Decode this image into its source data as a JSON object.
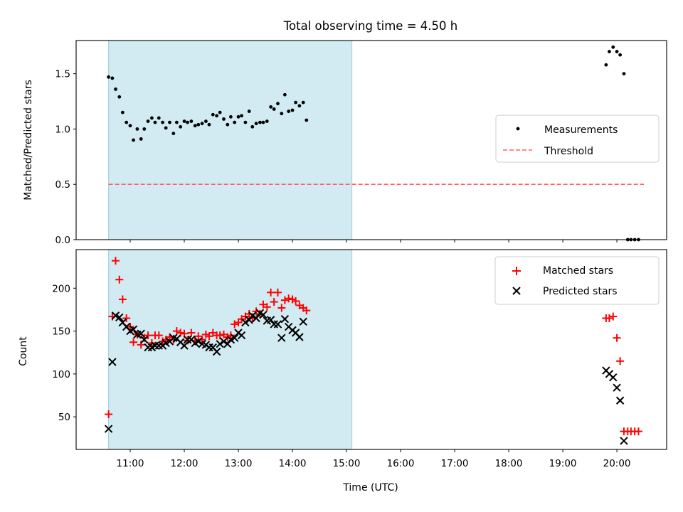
{
  "figure_title": "Total observing time = 4.50 h",
  "xlabel": "Time (UTC)",
  "xticks": [
    {
      "hour": 11,
      "label": "11:00"
    },
    {
      "hour": 12,
      "label": "12:00"
    },
    {
      "hour": 13,
      "label": "13:00"
    },
    {
      "hour": 14,
      "label": "14:00"
    },
    {
      "hour": 15,
      "label": "15:00"
    },
    {
      "hour": 16,
      "label": "16:00"
    },
    {
      "hour": 17,
      "label": "17:00"
    },
    {
      "hour": 18,
      "label": "18:00"
    },
    {
      "hour": 19,
      "label": "19:00"
    },
    {
      "hour": 20,
      "label": "20:00"
    }
  ],
  "colors": {
    "shade": "#add8e6",
    "threshold": "#ff6060",
    "matched": "#ff0000",
    "predicted": "#000000",
    "measurement": "#000000"
  },
  "chart_data": [
    {
      "type": "scatter",
      "title": "Total observing time = 4.50 h",
      "xlabel": "",
      "ylabel": "Matched/Predicted stars",
      "xlim": [
        10.0,
        20.92
      ],
      "ylim": [
        0.0,
        1.8
      ],
      "yticks": [
        "0.0",
        "0.5",
        "1.0",
        "1.5"
      ],
      "shaded_span": [
        10.6,
        15.1
      ],
      "legend": {
        "position": "center-right",
        "entries": [
          "Measurements",
          "Threshold"
        ]
      },
      "series": [
        {
          "name": "Measurements",
          "marker": "dot",
          "points": [
            [
              10.6,
              1.47
            ],
            [
              10.67,
              1.46
            ],
            [
              10.73,
              1.36
            ],
            [
              10.8,
              1.29
            ],
            [
              10.86,
              1.15
            ],
            [
              10.93,
              1.06
            ],
            [
              11.0,
              1.03
            ],
            [
              11.06,
              0.9
            ],
            [
              11.13,
              1.0
            ],
            [
              11.2,
              0.91
            ],
            [
              11.26,
              1.0
            ],
            [
              11.33,
              1.07
            ],
            [
              11.4,
              1.1
            ],
            [
              11.46,
              1.06
            ],
            [
              11.53,
              1.1
            ],
            [
              11.6,
              1.06
            ],
            [
              11.66,
              1.01
            ],
            [
              11.73,
              1.06
            ],
            [
              11.8,
              0.96
            ],
            [
              11.86,
              1.06
            ],
            [
              11.93,
              1.02
            ],
            [
              12.0,
              1.07
            ],
            [
              12.06,
              1.06
            ],
            [
              12.13,
              1.07
            ],
            [
              12.2,
              1.03
            ],
            [
              12.26,
              1.04
            ],
            [
              12.33,
              1.05
            ],
            [
              12.4,
              1.07
            ],
            [
              12.46,
              1.04
            ],
            [
              12.53,
              1.13
            ],
            [
              12.6,
              1.12
            ],
            [
              12.66,
              1.15
            ],
            [
              12.73,
              1.09
            ],
            [
              12.8,
              1.04
            ],
            [
              12.86,
              1.11
            ],
            [
              12.93,
              1.06
            ],
            [
              13.0,
              1.11
            ],
            [
              13.06,
              1.12
            ],
            [
              13.13,
              1.06
            ],
            [
              13.2,
              1.16
            ],
            [
              13.26,
              1.02
            ],
            [
              13.33,
              1.05
            ],
            [
              13.4,
              1.06
            ],
            [
              13.46,
              1.06
            ],
            [
              13.53,
              1.07
            ],
            [
              13.6,
              1.2
            ],
            [
              13.66,
              1.18
            ],
            [
              13.73,
              1.23
            ],
            [
              13.8,
              1.14
            ],
            [
              13.86,
              1.31
            ],
            [
              13.93,
              1.16
            ],
            [
              14.0,
              1.17
            ],
            [
              14.06,
              1.24
            ],
            [
              14.13,
              1.21
            ],
            [
              14.2,
              1.24
            ],
            [
              14.26,
              1.08
            ],
            [
              19.8,
              1.58
            ],
            [
              19.86,
              1.7
            ],
            [
              19.93,
              1.74
            ],
            [
              20.0,
              1.7
            ],
            [
              20.06,
              1.67
            ],
            [
              20.13,
              1.5
            ],
            [
              20.2,
              0.0
            ],
            [
              20.26,
              0.0
            ],
            [
              20.33,
              0.0
            ],
            [
              20.4,
              0.0
            ]
          ]
        },
        {
          "name": "Threshold",
          "marker": "dashed-line",
          "points": [
            [
              10.6,
              0.5
            ],
            [
              20.5,
              0.5
            ]
          ]
        }
      ]
    },
    {
      "type": "scatter",
      "title": "",
      "xlabel": "Time (UTC)",
      "ylabel": "Count",
      "xlim": [
        10.0,
        20.92
      ],
      "ylim": [
        12,
        245
      ],
      "yticks": [
        "50",
        "100",
        "150",
        "200"
      ],
      "shaded_span": [
        10.6,
        15.1
      ],
      "legend": {
        "position": "top-right",
        "entries": [
          "Matched stars",
          "Predicted stars"
        ]
      },
      "series": [
        {
          "name": "Matched stars",
          "marker": "plus",
          "points": [
            [
              10.6,
              53
            ],
            [
              10.67,
              167
            ],
            [
              10.73,
              232
            ],
            [
              10.8,
              210
            ],
            [
              10.86,
              187
            ],
            [
              10.93,
              165
            ],
            [
              11.0,
              155
            ],
            [
              11.06,
              137
            ],
            [
              11.13,
              146
            ],
            [
              11.2,
              134
            ],
            [
              11.26,
              142
            ],
            [
              11.33,
              145
            ],
            [
              11.4,
              136
            ],
            [
              11.46,
              145
            ],
            [
              11.53,
              145
            ],
            [
              11.6,
              138
            ],
            [
              11.66,
              140
            ],
            [
              11.73,
              143
            ],
            [
              11.8,
              140
            ],
            [
              11.86,
              150
            ],
            [
              11.93,
              148
            ],
            [
              12.0,
              147
            ],
            [
              12.06,
              139
            ],
            [
              12.13,
              148
            ],
            [
              12.2,
              139
            ],
            [
              12.26,
              144
            ],
            [
              12.33,
              140
            ],
            [
              12.4,
              146
            ],
            [
              12.46,
              144
            ],
            [
              12.53,
              148
            ],
            [
              12.6,
              145
            ],
            [
              12.66,
              145
            ],
            [
              12.73,
              146
            ],
            [
              12.8,
              143
            ],
            [
              12.86,
              145
            ],
            [
              12.93,
              158
            ],
            [
              13.0,
              160
            ],
            [
              13.06,
              164
            ],
            [
              13.13,
              167
            ],
            [
              13.2,
              170
            ],
            [
              13.26,
              165
            ],
            [
              13.33,
              173
            ],
            [
              13.4,
              170
            ],
            [
              13.46,
              181
            ],
            [
              13.53,
              178
            ],
            [
              13.6,
              195
            ],
            [
              13.66,
              184
            ],
            [
              13.73,
              195
            ],
            [
              13.8,
              177
            ],
            [
              13.86,
              186
            ],
            [
              13.93,
              188
            ],
            [
              14.0,
              187
            ],
            [
              14.06,
              185
            ],
            [
              14.13,
              180
            ],
            [
              14.2,
              177
            ],
            [
              14.26,
              174
            ],
            [
              19.8,
              165
            ],
            [
              19.86,
              165
            ],
            [
              19.93,
              167
            ],
            [
              20.0,
              142
            ],
            [
              20.06,
              115
            ],
            [
              20.13,
              33
            ],
            [
              20.2,
              33
            ],
            [
              20.26,
              33
            ],
            [
              20.33,
              33
            ],
            [
              20.4,
              33
            ]
          ]
        },
        {
          "name": "Predicted stars",
          "marker": "x",
          "points": [
            [
              10.6,
              36
            ],
            [
              10.67,
              114
            ],
            [
              10.73,
              168
            ],
            [
              10.8,
              166
            ],
            [
              10.86,
              160
            ],
            [
              10.93,
              155
            ],
            [
              11.0,
              150
            ],
            [
              11.06,
              152
            ],
            [
              11.13,
              146
            ],
            [
              11.2,
              147
            ],
            [
              11.26,
              140
            ],
            [
              11.33,
              131
            ],
            [
              11.4,
              131
            ],
            [
              11.46,
              133
            ],
            [
              11.53,
              133
            ],
            [
              11.6,
              133
            ],
            [
              11.66,
              136
            ],
            [
              11.73,
              138
            ],
            [
              11.8,
              142
            ],
            [
              11.86,
              141
            ],
            [
              11.93,
              137
            ],
            [
              12.0,
              133
            ],
            [
              12.06,
              140
            ],
            [
              12.13,
              140
            ],
            [
              12.2,
              136
            ],
            [
              12.26,
              138
            ],
            [
              12.33,
              135
            ],
            [
              12.4,
              134
            ],
            [
              12.46,
              131
            ],
            [
              12.53,
              131
            ],
            [
              12.6,
              126
            ],
            [
              12.66,
              135
            ],
            [
              12.73,
              138
            ],
            [
              12.8,
              135
            ],
            [
              12.86,
              140
            ],
            [
              12.93,
              142
            ],
            [
              13.0,
              148
            ],
            [
              13.06,
              145
            ],
            [
              13.13,
              160
            ],
            [
              13.2,
              163
            ],
            [
              13.26,
              168
            ],
            [
              13.33,
              165
            ],
            [
              13.4,
              171
            ],
            [
              13.46,
              169
            ],
            [
              13.53,
              162
            ],
            [
              13.6,
              163
            ],
            [
              13.66,
              158
            ],
            [
              13.73,
              158
            ],
            [
              13.8,
              142
            ],
            [
              13.86,
              164
            ],
            [
              13.93,
              155
            ],
            [
              14.0,
              151
            ],
            [
              14.06,
              148
            ],
            [
              14.13,
              143
            ],
            [
              14.2,
              161
            ],
            [
              19.8,
              104
            ],
            [
              19.86,
              100
            ],
            [
              19.93,
              96
            ],
            [
              20.0,
              84
            ],
            [
              20.06,
              69
            ],
            [
              20.13,
              22
            ]
          ]
        }
      ]
    }
  ]
}
